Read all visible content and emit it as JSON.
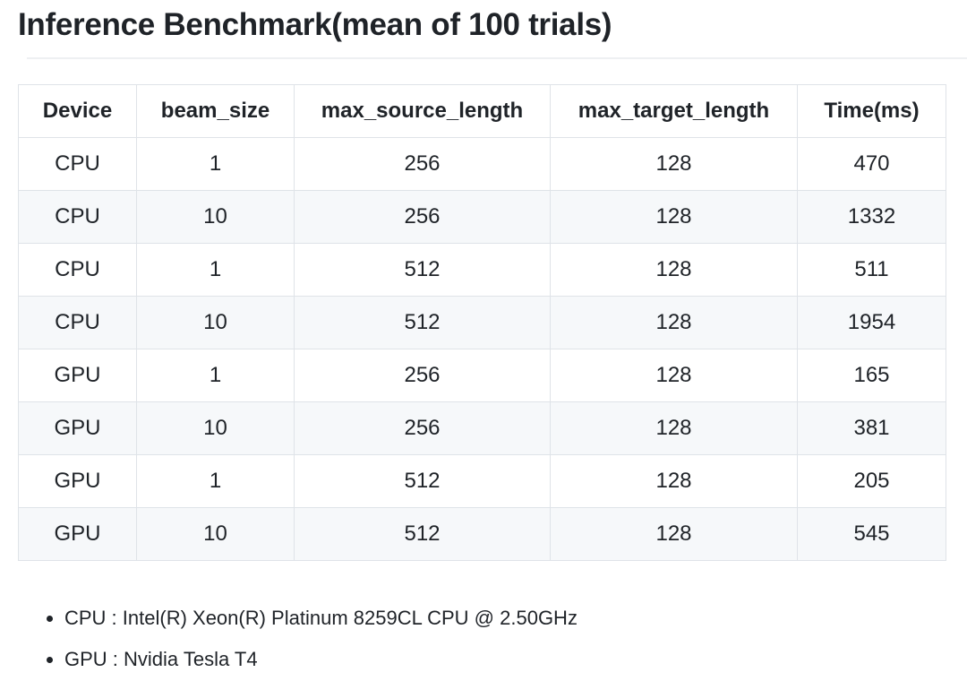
{
  "header": {
    "title": "Inference Benchmark(mean of 100 trials)"
  },
  "table": {
    "headers": [
      "Device",
      "beam_size",
      "max_source_length",
      "max_target_length",
      "Time(ms)"
    ],
    "rows": [
      [
        "CPU",
        1,
        256,
        128,
        470
      ],
      [
        "CPU",
        10,
        256,
        128,
        1332
      ],
      [
        "CPU",
        1,
        512,
        128,
        511
      ],
      [
        "CPU",
        10,
        512,
        128,
        1954
      ],
      [
        "GPU",
        1,
        256,
        128,
        165
      ],
      [
        "GPU",
        10,
        256,
        128,
        381
      ],
      [
        "GPU",
        1,
        512,
        128,
        205
      ],
      [
        "GPU",
        10,
        512,
        128,
        545
      ]
    ]
  },
  "notes": [
    "CPU : Intel(R) Xeon(R) Platinum 8259CL CPU @ 2.50GHz",
    "GPU : Nvidia Tesla T4"
  ]
}
